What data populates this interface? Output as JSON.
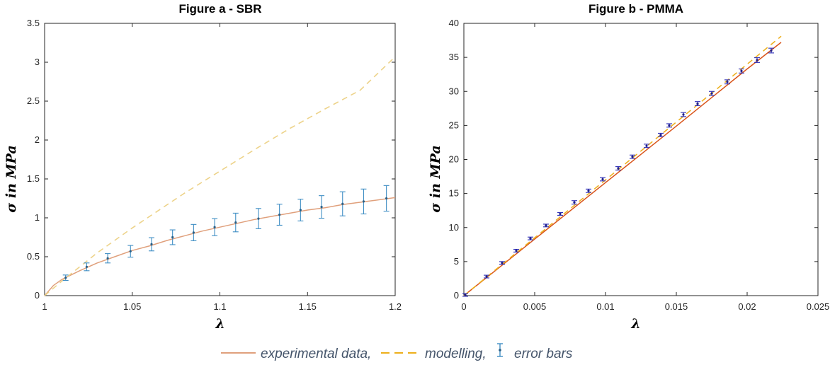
{
  "colors": {
    "experimental": "#d95319",
    "experimental_soft": "#e0a07c",
    "modelling_a": "#edd38a",
    "modelling_b": "#edb120",
    "errorbar_a": "#3f8ec4",
    "errorbar_b": "#2b2bb5",
    "legend_text": "#44546a",
    "axis": "#262626"
  },
  "legend": {
    "experimental_label": "experimental data,",
    "modelling_label": "modelling,",
    "errorbar_label": "error bars"
  },
  "chart_data": [
    {
      "type": "line",
      "title": "Figure a - SBR",
      "xlabel": "λ",
      "ylabel": "σ in MPa",
      "xlim": [
        1,
        1.2
      ],
      "ylim": [
        0,
        3.5
      ],
      "xticks": [
        1,
        1.05,
        1.1,
        1.15,
        1.2
      ],
      "xtick_labels": [
        "1",
        "1.05",
        "1.1",
        "1.15",
        "1.2"
      ],
      "yticks": [
        0,
        0.5,
        1,
        1.5,
        2,
        2.5,
        3,
        3.5
      ],
      "ytick_labels": [
        "0",
        "0.5",
        "1",
        "1.5",
        "2",
        "2.5",
        "3",
        "3.5"
      ],
      "grid": false,
      "series": [
        {
          "role": "experimental",
          "style": "solid",
          "x": [
            1.0,
            1.005,
            1.01,
            1.02,
            1.03,
            1.04,
            1.05,
            1.06,
            1.07,
            1.08,
            1.09,
            1.1,
            1.11,
            1.12,
            1.13,
            1.14,
            1.15,
            1.16,
            1.17,
            1.18,
            1.19,
            1.2
          ],
          "y": [
            0.0,
            0.13,
            0.21,
            0.32,
            0.42,
            0.5,
            0.58,
            0.64,
            0.71,
            0.77,
            0.83,
            0.88,
            0.93,
            0.98,
            1.02,
            1.06,
            1.1,
            1.13,
            1.17,
            1.2,
            1.23,
            1.26
          ]
        },
        {
          "role": "modelling",
          "style": "dashed",
          "x": [
            1.0,
            1.01,
            1.02,
            1.03,
            1.04,
            1.05,
            1.06,
            1.08,
            1.1,
            1.12,
            1.14,
            1.16,
            1.18,
            1.2
          ],
          "y": [
            0.0,
            0.19,
            0.37,
            0.55,
            0.71,
            0.87,
            1.02,
            1.32,
            1.6,
            1.88,
            2.15,
            2.4,
            2.64,
            3.07
          ]
        }
      ],
      "errorbars": {
        "x": [
          1.012,
          1.024,
          1.036,
          1.049,
          1.061,
          1.073,
          1.085,
          1.097,
          1.109,
          1.122,
          1.134,
          1.146,
          1.158,
          1.17,
          1.182,
          1.195
        ],
        "y": [
          0.23,
          0.37,
          0.48,
          0.57,
          0.66,
          0.75,
          0.81,
          0.88,
          0.94,
          0.99,
          1.04,
          1.1,
          1.14,
          1.18,
          1.21,
          1.25
        ],
        "err": [
          0.035,
          0.05,
          0.06,
          0.075,
          0.085,
          0.095,
          0.105,
          0.11,
          0.12,
          0.13,
          0.135,
          0.14,
          0.145,
          0.155,
          0.16,
          0.165
        ]
      }
    },
    {
      "type": "line",
      "title": "Figure b - PMMA",
      "xlabel": "λ",
      "ylabel": "σ in MPa",
      "xlim": [
        0,
        0.025
      ],
      "ylim": [
        0,
        40
      ],
      "xticks": [
        0,
        0.005,
        0.01,
        0.015,
        0.02,
        0.025
      ],
      "xtick_labels": [
        "0",
        "0.005",
        "0.01",
        "0.015",
        "0.02",
        "0.025"
      ],
      "yticks": [
        0,
        5,
        10,
        15,
        20,
        25,
        30,
        35,
        40
      ],
      "ytick_labels": [
        "0",
        "5",
        "10",
        "15",
        "20",
        "25",
        "30",
        "35",
        "40"
      ],
      "grid": false,
      "series": [
        {
          "role": "experimental",
          "style": "solid",
          "x": [
            0.0,
            0.002,
            0.005,
            0.01,
            0.015,
            0.02,
            0.0224
          ],
          "y": [
            0.0,
            3.3,
            8.3,
            16.6,
            24.9,
            33.3,
            37.2
          ]
        },
        {
          "role": "modelling",
          "style": "dashed",
          "x": [
            0.0,
            0.005,
            0.01,
            0.015,
            0.02,
            0.0224
          ],
          "y": [
            0.0,
            8.5,
            17.0,
            25.5,
            34.0,
            38.1
          ]
        }
      ],
      "errorbars": {
        "x": [
          0.0001,
          0.0016,
          0.0027,
          0.0037,
          0.0047,
          0.0058,
          0.0068,
          0.0078,
          0.0088,
          0.0098,
          0.0109,
          0.0119,
          0.0129,
          0.0139,
          0.0145,
          0.0155,
          0.0165,
          0.0175,
          0.0186,
          0.0196,
          0.0207,
          0.0217
        ],
        "y": [
          0.1,
          2.8,
          4.8,
          6.6,
          8.4,
          10.3,
          12.0,
          13.7,
          15.4,
          17.1,
          18.7,
          20.4,
          22.0,
          23.6,
          25.0,
          26.6,
          28.2,
          29.7,
          31.4,
          33.0,
          34.6,
          36.0
        ],
        "err": [
          0.2,
          0.2,
          0.2,
          0.2,
          0.2,
          0.2,
          0.2,
          0.25,
          0.25,
          0.25,
          0.25,
          0.25,
          0.25,
          0.25,
          0.25,
          0.3,
          0.3,
          0.3,
          0.3,
          0.3,
          0.35,
          0.35
        ]
      }
    }
  ]
}
